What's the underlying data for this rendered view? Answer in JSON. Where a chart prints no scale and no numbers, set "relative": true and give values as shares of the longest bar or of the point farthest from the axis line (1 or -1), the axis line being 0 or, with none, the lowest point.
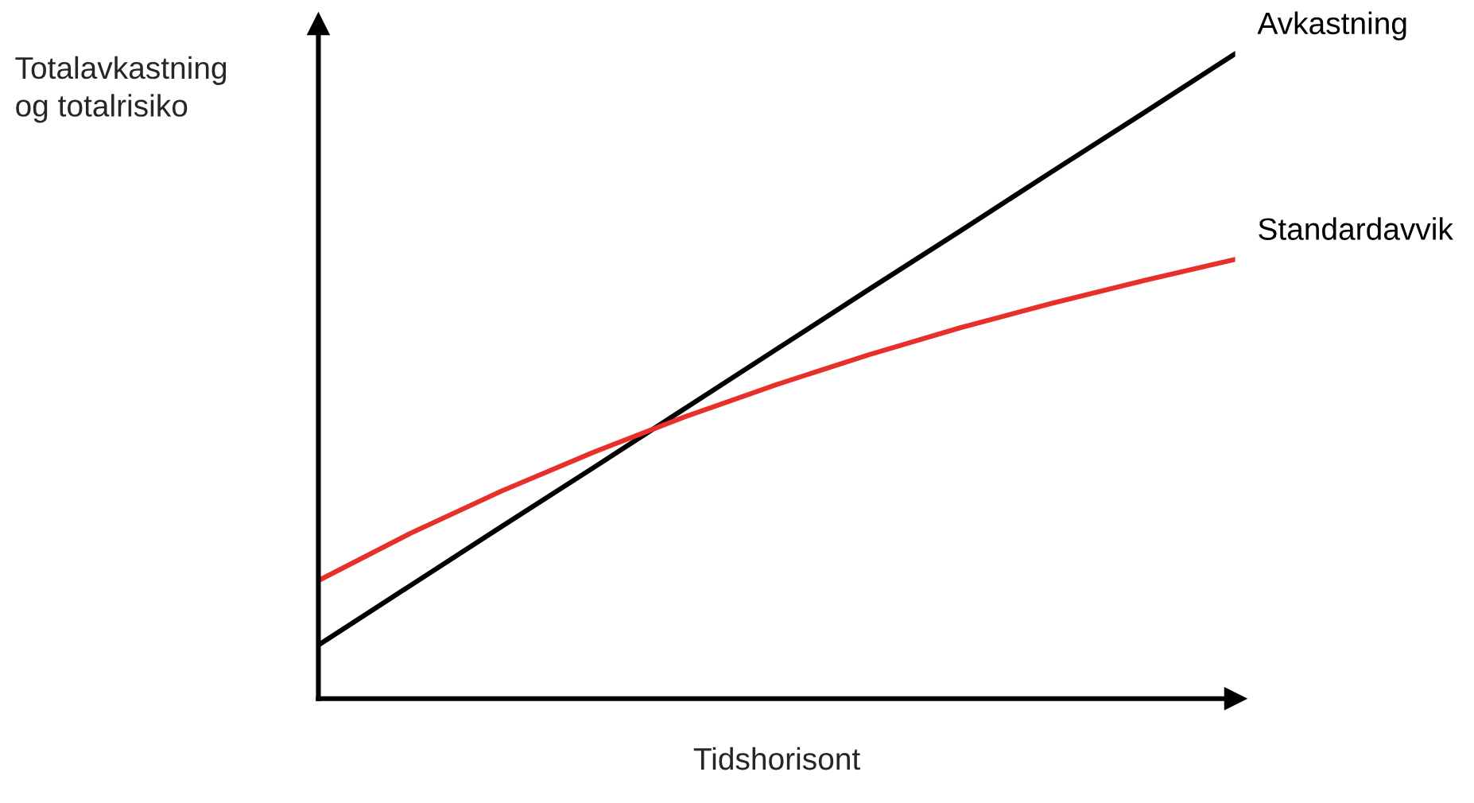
{
  "chart_data": {
    "type": "line",
    "relative": true,
    "xlabel": "Tidshorisont",
    "ylabel": "Totalavkastning\nog totalrisiko",
    "categories": [
      null,
      null,
      null,
      null,
      null,
      null,
      null,
      null,
      null,
      null,
      null
    ],
    "series": [
      {
        "name": "Avkastning",
        "color": "#000000",
        "values": [
          0.083,
          0.175,
          0.267,
          0.358,
          0.45,
          0.542,
          0.634,
          0.725,
          0.817,
          0.908,
          1.0
        ]
      },
      {
        "name": "Standardavvik",
        "color": "#e8302a",
        "values": [
          0.183,
          0.256,
          0.322,
          0.382,
          0.437,
          0.487,
          0.533,
          0.575,
          0.613,
          0.648,
          0.681
        ]
      }
    ],
    "legend": false,
    "grid": false,
    "tick_labels": false,
    "marker": "none",
    "line_style": "solid"
  }
}
